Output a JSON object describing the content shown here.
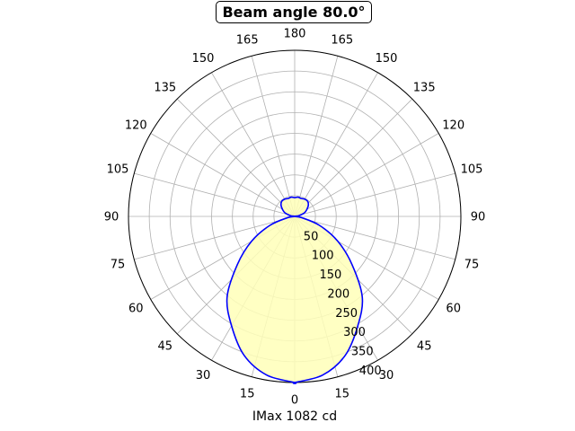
{
  "chart_data": {
    "type": "polar-line",
    "title": "Beam angle 80.0°",
    "xlabel": "IMax 1082 cd",
    "angle_tick_labels": [
      "0",
      "15",
      "30",
      "45",
      "60",
      "75",
      "90",
      "105",
      "120",
      "135",
      "150",
      "165",
      "180",
      "165",
      "150",
      "135",
      "120",
      "105",
      "90",
      "75",
      "60",
      "45",
      "30",
      "15"
    ],
    "radial_tick_labels": [
      "50",
      "100",
      "150",
      "200",
      "250",
      "300",
      "350",
      "400"
    ],
    "radial_lim": [
      0,
      400
    ],
    "grid": true,
    "series": [
      {
        "color": "#0000ff",
        "fill": "#ffffb8",
        "angles_deg": [
          0,
          10,
          20,
          30,
          40,
          50,
          60,
          70,
          80,
          90,
          100,
          110,
          120,
          130,
          140,
          150,
          160,
          170,
          180
        ],
        "values": [
          400,
          388,
          356,
          304,
          253,
          180,
          120,
          64,
          17,
          0,
          10,
          25,
          34,
          43,
          48,
          48,
          46,
          47,
          45
        ]
      }
    ]
  }
}
